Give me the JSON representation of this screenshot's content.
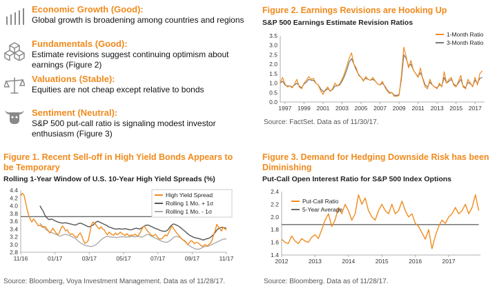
{
  "panel": {
    "items": [
      {
        "icon": "bar-growth-icon",
        "heading": "Economic Growth (Good):",
        "text": "Global growth is broadening among countries and regions"
      },
      {
        "icon": "cubes-icon",
        "heading": "Fundamentals (Good):",
        "text": "Estimate revisions suggest continuing optimism about earnings (Figure 2)"
      },
      {
        "icon": "scale-icon",
        "heading": "Valuations (Stable):",
        "text": "Equities are not cheap except relative to bonds"
      },
      {
        "icon": "bull-bear-icon",
        "heading": "Sentiment (Neutral):",
        "text": "S&P 500 put-call ratio is signaling modest investor enthusiasm (Figure 3)"
      }
    ]
  },
  "chart_data": [
    {
      "id": "fig1",
      "type": "line",
      "title": "Figure 1. Recent Sell-off in High Yield Bonds Appears to be Temporary",
      "subtitle": "Rolling 1-Year Window of U.S. 10-Year High Yield Spreads (%)",
      "source": "Source: Bloomberg, Voya Investment Management. Data as of 11/28/17.",
      "x_ticks": [
        "11/16",
        "01/17",
        "03/17",
        "05/17",
        "07/17",
        "09/17",
        "11/17"
      ],
      "ylim": [
        2.8,
        4.4
      ],
      "y_ticks": [
        2.8,
        3.0,
        3.2,
        3.4,
        3.6,
        3.8,
        4.0,
        4.2,
        4.4
      ],
      "legend_position": "top-right",
      "x": [
        0,
        2,
        4,
        6,
        8,
        10,
        12,
        14,
        16,
        18,
        20,
        22,
        24,
        26,
        28,
        30,
        32,
        34,
        36,
        38,
        40,
        42,
        44,
        46,
        48,
        50,
        52,
        54,
        56,
        58,
        60,
        62,
        64,
        66,
        68,
        70,
        72,
        74,
        76,
        78,
        80,
        82,
        84,
        86,
        88,
        90,
        92,
        94,
        96,
        98,
        100,
        102,
        104,
        106,
        108,
        110,
        112,
        114,
        116,
        118,
        120,
        122,
        124,
        126,
        128,
        130,
        132,
        134,
        136,
        138,
        140,
        142,
        144,
        146,
        148,
        150,
        152,
        154,
        156,
        158,
        160,
        162,
        164,
        166,
        168,
        170,
        172,
        174,
        176,
        178,
        180,
        182,
        184,
        186,
        188,
        190,
        192,
        194,
        196,
        198,
        200,
        202,
        204,
        206,
        208,
        210,
        212,
        214,
        216,
        218,
        220,
        222,
        224,
        226,
        228,
        230,
        232,
        234,
        236,
        238,
        240,
        242,
        244,
        246,
        248,
        250,
        252,
        254,
        256
      ],
      "series": [
        {
          "name": "High Yield Spread",
          "color": "#f08a1c",
          "values": [
            4.25,
            4.32,
            4.28,
            4.1,
            3.9,
            3.75,
            3.64,
            3.58,
            3.66,
            3.6,
            3.55,
            3.48,
            3.5,
            3.46,
            3.44,
            3.47,
            3.42,
            3.36,
            3.3,
            3.34,
            3.42,
            3.36,
            3.3,
            3.25,
            3.3,
            3.42,
            3.48,
            3.42,
            3.35,
            3.38,
            3.3,
            3.26,
            3.28,
            3.24,
            3.2,
            3.18,
            3.25,
            3.3,
            3.22,
            3.1,
            3.03,
            3.06,
            3.1,
            3.3,
            3.5,
            3.58,
            3.54,
            3.5,
            3.44,
            3.4,
            3.46,
            3.4,
            3.38,
            3.3,
            3.25,
            3.32,
            3.28,
            3.25,
            3.24,
            3.3,
            3.25,
            3.28,
            3.32,
            3.28,
            3.26,
            3.23,
            3.28,
            3.24,
            3.22,
            3.25,
            3.23,
            3.27,
            3.24,
            3.22,
            3.28,
            3.36,
            3.44,
            3.47,
            3.4,
            3.34,
            3.3,
            3.25,
            3.22,
            3.24,
            3.26,
            3.2,
            3.15,
            3.14,
            3.16,
            3.2,
            3.25,
            3.22,
            3.3,
            3.38,
            3.48,
            3.42,
            3.36,
            3.3,
            3.25,
            3.2,
            3.15,
            3.12,
            3.1,
            3.05,
            3.0,
            3.05,
            3.1,
            3.08,
            3.02,
            3.05,
            3.05,
            3.02,
            2.98,
            2.95,
            2.98,
            3.0,
            2.95,
            3.0,
            3.03,
            3.1,
            3.25,
            3.35,
            3.52,
            3.45,
            3.4,
            3.35,
            3.45,
            3.4,
            3.38
          ]
        },
        {
          "name": "Rolling 1 Mo. + 1σ",
          "color": "#555555",
          "values": [
            null,
            null,
            null,
            null,
            null,
            null,
            null,
            null,
            null,
            null,
            null,
            null,
            4.0,
            3.92,
            3.86,
            3.76,
            3.7,
            3.66,
            3.64,
            3.66,
            3.64,
            3.62,
            3.6,
            3.58,
            3.57,
            3.56,
            3.55,
            3.56,
            3.56,
            3.55,
            3.54,
            3.53,
            3.52,
            3.51,
            3.5,
            3.52,
            3.54,
            3.55,
            3.54,
            3.52,
            3.5,
            3.48,
            3.46,
            3.46,
            3.48,
            3.5,
            3.54,
            3.58,
            3.6,
            3.58,
            3.56,
            3.54,
            3.52,
            3.5,
            3.48,
            3.45,
            3.44,
            3.42,
            3.41,
            3.4,
            3.4,
            3.41,
            3.4,
            3.4,
            3.4,
            3.41,
            3.4,
            3.39,
            3.38,
            3.38,
            3.4,
            3.41,
            3.42,
            3.41,
            3.4,
            3.42,
            3.45,
            3.48,
            3.5,
            3.5,
            3.49,
            3.47,
            3.45,
            3.43,
            3.41,
            3.4,
            3.38,
            3.36,
            3.35,
            3.34,
            3.34,
            3.36,
            3.4,
            3.46,
            3.5,
            3.53,
            3.52,
            3.5,
            3.48,
            3.45,
            3.42,
            3.38,
            3.35,
            3.31,
            3.28,
            3.24,
            3.22,
            3.2,
            3.18,
            3.17,
            3.16,
            3.15,
            3.14,
            3.12,
            3.12,
            3.14,
            3.15,
            3.16,
            3.18,
            3.22,
            3.26,
            3.31,
            3.37,
            3.41,
            3.43,
            3.44,
            3.44,
            3.43,
            3.42
          ]
        },
        {
          "name": "Rolling 1 Mo. - 1σ",
          "color": "#aaaaaa",
          "values": [
            null,
            null,
            null,
            null,
            null,
            null,
            null,
            null,
            null,
            null,
            null,
            null,
            3.55,
            3.5,
            3.46,
            3.42,
            3.38,
            3.35,
            3.32,
            3.3,
            3.3,
            3.28,
            3.26,
            3.24,
            3.22,
            3.22,
            3.24,
            3.26,
            3.26,
            3.25,
            3.24,
            3.22,
            3.2,
            3.18,
            3.16,
            3.12,
            3.08,
            3.05,
            3.02,
            3.0,
            2.98,
            2.97,
            2.96,
            2.95,
            2.95,
            2.96,
            2.98,
            3.0,
            3.04,
            3.08,
            3.12,
            3.15,
            3.18,
            3.2,
            3.21,
            3.2,
            3.2,
            3.19,
            3.19,
            3.18,
            3.18,
            3.19,
            3.2,
            3.2,
            3.2,
            3.19,
            3.19,
            3.2,
            3.2,
            3.21,
            3.2,
            3.2,
            3.2,
            3.21,
            3.2,
            3.19,
            3.2,
            3.22,
            3.25,
            3.26,
            3.25,
            3.22,
            3.2,
            3.18,
            3.16,
            3.14,
            3.12,
            3.1,
            3.08,
            3.07,
            3.06,
            3.06,
            3.08,
            3.1,
            3.14,
            3.18,
            3.2,
            3.21,
            3.2,
            3.18,
            3.16,
            3.12,
            3.08,
            3.04,
            3.0,
            2.97,
            2.94,
            2.92,
            2.9,
            2.88,
            2.88,
            2.88,
            2.9,
            2.92,
            2.94,
            2.95,
            2.96,
            2.96,
            2.98,
            3.0,
            3.02,
            3.04,
            3.06,
            3.08,
            3.1,
            3.12,
            3.14,
            3.14,
            3.15
          ]
        }
      ],
      "reference_line": {
        "y": 3.72,
        "color": "#333333"
      }
    },
    {
      "id": "fig2",
      "type": "line",
      "title": "Figure 2. Earnings Revisions are Hooking Up",
      "subtitle": "S&P 500 Earnings Estimate Revision Ratios",
      "source": "Source: FactSet. Data as of 11/30/17.",
      "x_ticks": [
        "1997",
        "1999",
        "2001",
        "2003",
        "2005",
        "2007",
        "2009",
        "2011",
        "2013",
        "2015",
        "2017"
      ],
      "xlim": [
        1996.5,
        2018.0
      ],
      "ylim": [
        0.0,
        3.5
      ],
      "y_ticks": [
        0.0,
        0.5,
        1.0,
        1.5,
        2.0,
        2.5,
        3.0,
        3.5
      ],
      "legend_position": "top-right",
      "x": [
        1996.5,
        1996.75,
        1997.0,
        1997.25,
        1997.5,
        1997.75,
        1998.0,
        1998.25,
        1998.5,
        1998.75,
        1999.0,
        1999.25,
        1999.5,
        1999.75,
        2000.0,
        2000.25,
        2000.5,
        2000.75,
        2001.0,
        2001.25,
        2001.5,
        2001.75,
        2002.0,
        2002.25,
        2002.5,
        2002.75,
        2003.0,
        2003.25,
        2003.5,
        2003.75,
        2004.0,
        2004.25,
        2004.5,
        2004.75,
        2005.0,
        2005.25,
        2005.5,
        2005.75,
        2006.0,
        2006.25,
        2006.5,
        2006.75,
        2007.0,
        2007.25,
        2007.5,
        2007.75,
        2008.0,
        2008.25,
        2008.5,
        2008.75,
        2009.0,
        2009.25,
        2009.5,
        2009.75,
        2010.0,
        2010.25,
        2010.5,
        2010.75,
        2011.0,
        2011.25,
        2011.5,
        2011.75,
        2012.0,
        2012.25,
        2012.5,
        2012.75,
        2013.0,
        2013.25,
        2013.5,
        2013.75,
        2014.0,
        2014.25,
        2014.5,
        2014.75,
        2015.0,
        2015.25,
        2015.5,
        2015.75,
        2016.0,
        2016.25,
        2016.5,
        2016.75,
        2017.0,
        2017.25,
        2017.5,
        2017.75
      ],
      "series": [
        {
          "name": "1-Month Ratio",
          "color": "#f08a1c",
          "values": [
            1.0,
            1.3,
            0.95,
            0.8,
            0.85,
            0.75,
            0.95,
            1.2,
            0.8,
            0.7,
            1.0,
            1.15,
            1.35,
            1.2,
            1.25,
            1.0,
            0.9,
            0.6,
            0.4,
            0.65,
            0.8,
            0.55,
            0.7,
            1.0,
            0.85,
            0.95,
            1.2,
            1.5,
            1.9,
            2.3,
            2.6,
            2.0,
            1.8,
            1.4,
            1.3,
            1.1,
            1.35,
            1.2,
            1.15,
            1.3,
            1.1,
            0.95,
            0.9,
            1.1,
            0.8,
            0.6,
            0.45,
            0.5,
            0.3,
            0.3,
            0.35,
            1.4,
            2.9,
            2.4,
            1.8,
            2.2,
            1.7,
            1.5,
            1.3,
            1.8,
            1.2,
            0.8,
            0.7,
            1.2,
            0.9,
            0.8,
            0.7,
            1.0,
            0.8,
            1.6,
            1.0,
            1.2,
            1.3,
            0.9,
            0.8,
            1.1,
            1.4,
            0.8,
            0.7,
            1.2,
            1.0,
            0.8,
            1.3,
            0.9,
            1.5,
            1.65
          ]
        },
        {
          "name": "3-Month Ratio",
          "color": "#777777",
          "values": [
            1.0,
            1.1,
            0.9,
            0.85,
            0.85,
            0.8,
            0.9,
            1.0,
            0.85,
            0.75,
            0.95,
            1.05,
            1.2,
            1.15,
            1.15,
            1.0,
            0.9,
            0.7,
            0.55,
            0.6,
            0.7,
            0.6,
            0.65,
            0.85,
            0.85,
            0.9,
            1.1,
            1.35,
            1.7,
            2.1,
            2.3,
            2.0,
            1.7,
            1.45,
            1.3,
            1.15,
            1.25,
            1.2,
            1.15,
            1.2,
            1.1,
            0.95,
            0.9,
            1.0,
            0.85,
            0.65,
            0.5,
            0.5,
            0.35,
            0.35,
            0.4,
            1.2,
            2.5,
            2.3,
            1.9,
            2.0,
            1.7,
            1.5,
            1.35,
            1.55,
            1.25,
            0.9,
            0.8,
            1.05,
            0.9,
            0.8,
            0.75,
            0.9,
            0.85,
            1.3,
            1.0,
            1.1,
            1.2,
            0.95,
            0.85,
            1.0,
            1.2,
            0.85,
            0.75,
            1.05,
            0.95,
            0.85,
            1.15,
            1.0,
            1.25,
            1.3
          ]
        }
      ]
    },
    {
      "id": "fig3",
      "type": "line",
      "title": "Figure 3. Demand for Hedging Downside Risk has been Diminishing",
      "subtitle": "Put-Call Open Interest Ratio for S&P 500 Index Options",
      "source": "Source: Bloomberg. Data as of 11/28/17.",
      "x_ticks": [
        "2012",
        "2013",
        "2014",
        "2015",
        "2016",
        "2017"
      ],
      "xlim": [
        2012.0,
        2017.95
      ],
      "ylim": [
        1.4,
        2.4
      ],
      "y_ticks": [
        1.4,
        1.6,
        1.8,
        2.0,
        2.2,
        2.4
      ],
      "legend_position": "top-left",
      "x": [
        2012.0,
        2012.1,
        2012.2,
        2012.3,
        2012.4,
        2012.5,
        2012.6,
        2012.7,
        2012.8,
        2012.9,
        2013.0,
        2013.1,
        2013.2,
        2013.3,
        2013.4,
        2013.5,
        2013.6,
        2013.7,
        2013.8,
        2013.9,
        2014.0,
        2014.1,
        2014.2,
        2014.3,
        2014.4,
        2014.5,
        2014.6,
        2014.7,
        2014.8,
        2014.9,
        2015.0,
        2015.1,
        2015.2,
        2015.3,
        2015.4,
        2015.5,
        2015.6,
        2015.7,
        2015.8,
        2015.9,
        2016.0,
        2016.1,
        2016.2,
        2016.3,
        2016.4,
        2016.5,
        2016.6,
        2016.7,
        2016.8,
        2016.9,
        2017.0,
        2017.1,
        2017.2,
        2017.3,
        2017.4,
        2017.5,
        2017.6,
        2017.7,
        2017.8,
        2017.9
      ],
      "series": [
        {
          "name": "Put-Call Ratio",
          "color": "#f08a1c",
          "values": [
            1.65,
            1.6,
            1.58,
            1.7,
            1.62,
            1.58,
            1.66,
            1.62,
            1.6,
            1.68,
            1.72,
            1.66,
            1.8,
            1.95,
            2.05,
            1.85,
            1.95,
            2.15,
            2.05,
            2.2,
            2.1,
            1.95,
            2.05,
            2.35,
            2.2,
            2.3,
            2.1,
            2.0,
            1.95,
            2.1,
            2.2,
            2.1,
            2.05,
            2.2,
            2.05,
            2.1,
            2.25,
            2.1,
            2.0,
            2.05,
            1.9,
            1.85,
            1.75,
            1.65,
            1.8,
            1.5,
            1.7,
            1.85,
            1.95,
            1.9,
            2.0,
            2.05,
            2.15,
            2.05,
            2.1,
            2.2,
            2.05,
            2.15,
            2.35,
            2.1
          ]
        },
        {
          "name": "5-Year Average",
          "color": "#666666",
          "values": [
            1.88,
            1.88,
            1.88,
            1.88,
            1.88,
            1.88,
            1.88,
            1.88,
            1.88,
            1.88,
            1.88,
            1.88,
            1.88,
            1.88,
            1.88,
            1.88,
            1.88,
            1.88,
            1.88,
            1.88,
            1.88,
            1.88,
            1.88,
            1.88,
            1.88,
            1.88,
            1.88,
            1.88,
            1.88,
            1.88,
            1.88,
            1.88,
            1.88,
            1.88,
            1.88,
            1.88,
            1.88,
            1.88,
            1.88,
            1.88,
            1.88,
            1.88,
            1.88,
            1.88,
            1.88,
            1.88,
            1.88,
            1.88,
            1.88,
            1.88,
            1.88,
            1.88,
            1.88,
            1.88,
            1.88,
            1.88,
            1.88,
            1.88,
            1.88,
            1.88
          ]
        }
      ]
    }
  ]
}
